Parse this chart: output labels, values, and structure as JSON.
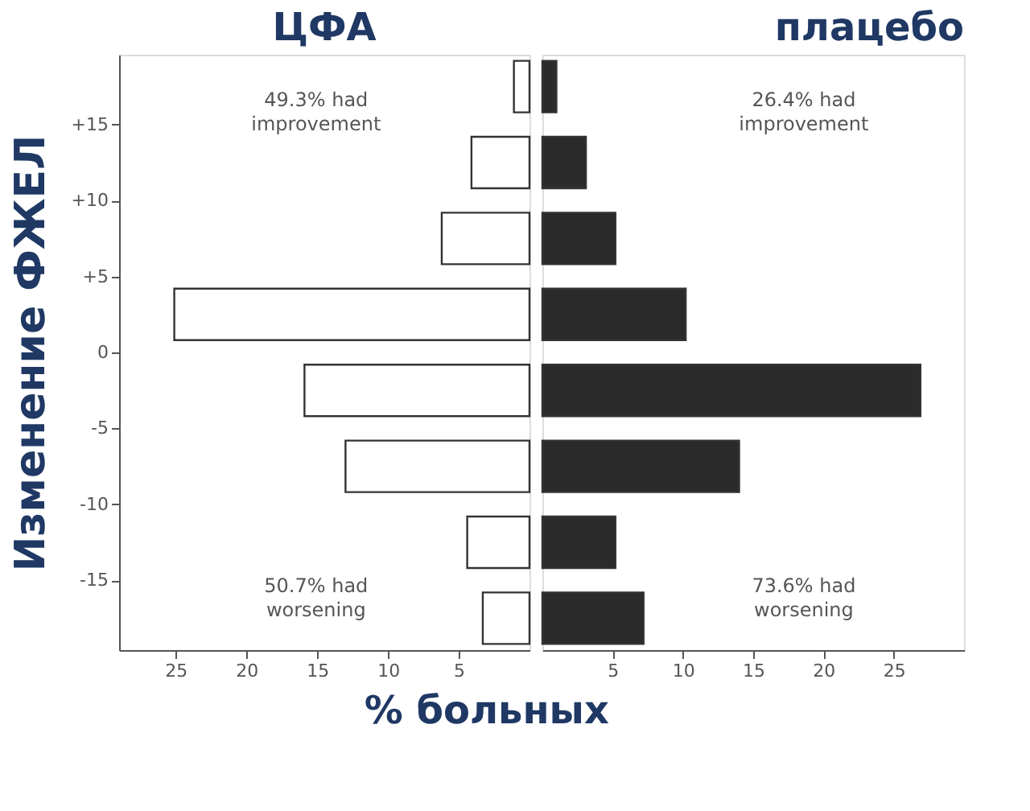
{
  "chart_data": [
    {
      "type": "bar",
      "orientation": "horizontal",
      "title": "ЦФА",
      "ylabel": "Изменение ФЖЕЛ",
      "xlabel": "% больных",
      "x": [
        17.5,
        12.5,
        7.5,
        2.5,
        -2.5,
        -7.5,
        -12.5,
        -17.5
      ],
      "series": [
        {
          "color": "#ffffff",
          "values": [
            1.1,
            4.1,
            6.2,
            25.1,
            15.9,
            13.0,
            4.4,
            3.3
          ]
        }
      ],
      "xlim": [
        29,
        0
      ],
      "xticks": [
        25,
        20,
        15,
        10,
        5
      ],
      "ylim": [
        -19.6,
        19.6
      ],
      "yticks": [
        {
          "value": 15,
          "label": "+15"
        },
        {
          "value": 10,
          "label": "+10"
        },
        {
          "value": 5,
          "label": "+5"
        },
        0,
        -5,
        -10,
        -15
      ],
      "annotations": [
        "49.3% had\nimprovement",
        "50.7% had\nworsening"
      ],
      "grid": false
    },
    {
      "type": "bar",
      "orientation": "horizontal",
      "title": "плацебо",
      "x": [
        17.5,
        12.5,
        7.5,
        2.5,
        -2.5,
        -7.5,
        -12.5,
        -17.5
      ],
      "series": [
        {
          "color": "#2b2b2b",
          "values": [
            1.0,
            3.1,
            5.2,
            10.2,
            26.9,
            14.0,
            5.2,
            7.2
          ]
        }
      ],
      "xlim": [
        0,
        30
      ],
      "xticks": [
        5,
        10,
        15,
        20,
        25
      ],
      "ylim": [
        -19.6,
        19.6
      ],
      "tick_labels": "x",
      "annotations": [
        "26.4% had\nimprovement",
        "73.6% had\nworsening"
      ],
      "grid": false
    }
  ]
}
